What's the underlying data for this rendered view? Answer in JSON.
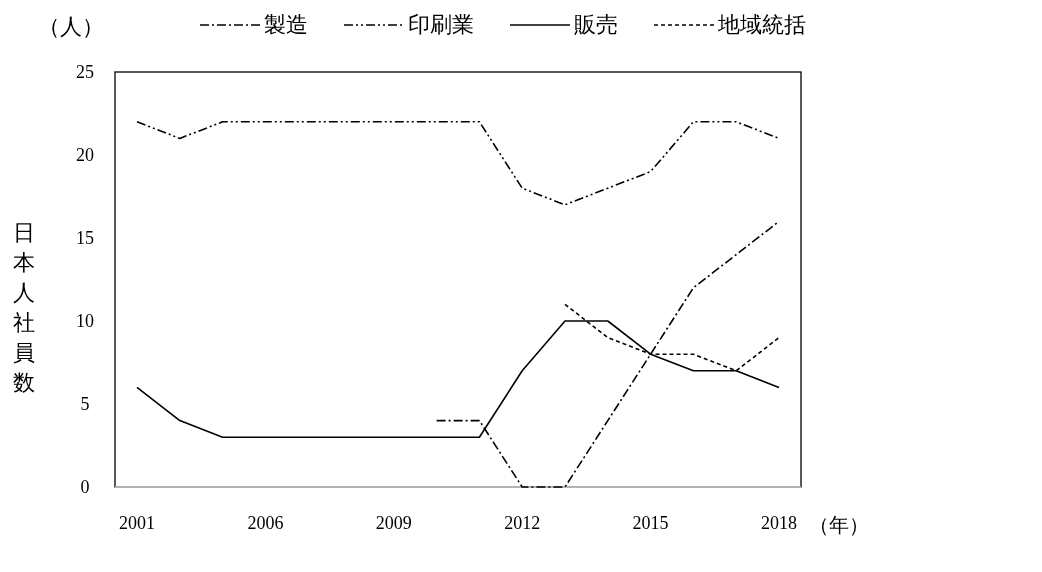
{
  "chart_data": {
    "type": "line",
    "ylabel": "日本人社員数",
    "xlabel": "（年）",
    "annotations": [
      "（人）"
    ],
    "categories": [
      "2001",
      null,
      null,
      "2006",
      null,
      null,
      "2009",
      null,
      null,
      "2012",
      null,
      null,
      "2015",
      null,
      null,
      "2018"
    ],
    "ylim": [
      0,
      25
    ],
    "yticks": [
      0,
      5,
      10,
      15,
      20,
      25
    ],
    "grid": false,
    "legend": "top",
    "marker": "none",
    "series": [
      {
        "name": "製造",
        "color": "#000000",
        "line_style": "dashdot",
        "values": [
          null,
          null,
          null,
          null,
          null,
          null,
          null,
          4,
          4,
          0,
          0,
          4,
          8,
          12,
          14,
          16
        ]
      },
      {
        "name": "印刷業",
        "color": "#000000",
        "line_style": "dashdotdot",
        "values": [
          22,
          21,
          22,
          22,
          22,
          22,
          22,
          22,
          22,
          18,
          17,
          18,
          19,
          22,
          22,
          21
        ]
      },
      {
        "name": "販売",
        "color": "#000000",
        "line_style": "solid",
        "values": [
          6,
          4,
          3,
          3,
          3,
          3,
          3,
          3,
          3,
          7,
          10,
          10,
          8,
          7,
          7,
          6
        ]
      },
      {
        "name": "地域統括",
        "color": "#000000",
        "line_style": "dashed",
        "values": [
          null,
          null,
          null,
          null,
          null,
          null,
          null,
          null,
          null,
          null,
          11,
          9,
          8,
          8,
          7,
          9
        ]
      }
    ]
  }
}
